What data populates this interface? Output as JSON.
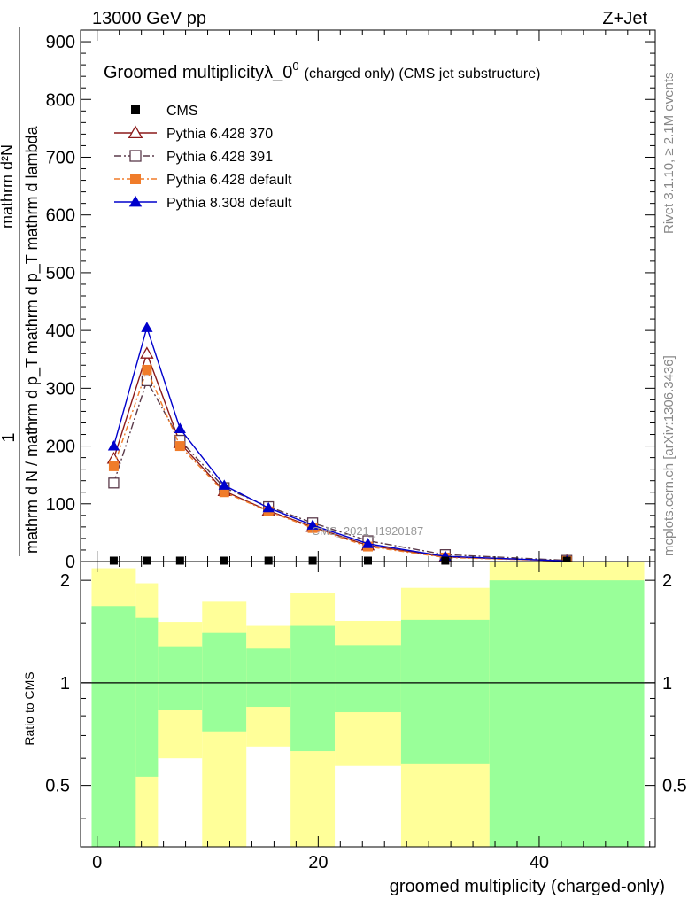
{
  "header": {
    "left": "13000 GeV pp",
    "right": "Z+Jet"
  },
  "side_labels": {
    "rivet": "Rivet 3.1.10, ≥ 2.1M events",
    "mcplots": "mcplots.cern.ch [arXiv:1306.3436]"
  },
  "chart_data": [
    {
      "type": "line",
      "title": "Groomed multiplicityλ_0",
      "title_sup": "0",
      "title_suffix": "(charged only) (CMS jet substructure)",
      "watermark": "CMS_2021_I1920187",
      "ylabel_top": "1",
      "ylabel_mid": "mathrm d N / mathrm d p_T mathrm d p_T mathrm d lambda",
      "ylabel_num": "mathrm d²N",
      "ylim": [
        0,
        920
      ],
      "yticks": [
        0,
        100,
        200,
        300,
        400,
        500,
        600,
        700,
        800,
        900
      ],
      "xlim": [
        -1.5,
        50.5
      ],
      "x": [
        1.5,
        4.5,
        7.5,
        11.5,
        15.5,
        19.5,
        24.5,
        31.5,
        42.5
      ],
      "series": [
        {
          "name": "CMS",
          "color": "#000000",
          "marker": "square-filled",
          "values": [
            0,
            0,
            0,
            0,
            0,
            0,
            0,
            0,
            0
          ]
        },
        {
          "name": "Pythia 6.428 370",
          "color": "#8b1a1a",
          "marker": "triangle-open",
          "dash": "",
          "values": [
            178,
            360,
            205,
            122,
            88,
            60,
            28,
            8,
            1
          ]
        },
        {
          "name": "Pythia 6.428 391",
          "color": "#5a3a4a",
          "marker": "square-open",
          "dash": "8 3 2 3",
          "values": [
            136,
            313,
            210,
            128,
            95,
            67,
            36,
            12,
            2
          ]
        },
        {
          "name": "Pythia 6.428 default",
          "color": "#f07c2a",
          "marker": "square-filled",
          "dash": "6 3 2 3",
          "values": [
            165,
            332,
            200,
            120,
            87,
            58,
            26,
            7,
            1
          ]
        },
        {
          "name": "Pythia 8.308 default",
          "color": "#0000cc",
          "marker": "triangle-filled",
          "dash": "",
          "values": [
            200,
            405,
            230,
            132,
            93,
            63,
            31,
            9,
            1
          ]
        }
      ]
    },
    {
      "type": "area",
      "ylabel": "Ratio to CMS",
      "xlabel": "groomed multiplicity (charged-only)",
      "xlim": [
        -1.5,
        50.5
      ],
      "xticks": [
        0,
        20,
        40
      ],
      "ylim": [
        0.33,
        2.27
      ],
      "yticks": [
        0.5,
        1,
        2
      ],
      "bands": [
        {
          "x0": -0.5,
          "x1": 3.5,
          "green": [
            0.33,
            1.68
          ],
          "yellow": [
            0.33,
            2.17
          ]
        },
        {
          "x0": 3.5,
          "x1": 5.5,
          "green": [
            0.53,
            1.55
          ],
          "yellow": [
            0.33,
            1.96
          ]
        },
        {
          "x0": 5.5,
          "x1": 9.5,
          "green": [
            0.83,
            1.28
          ],
          "yellow": [
            0.6,
            1.51
          ]
        },
        {
          "x0": 9.5,
          "x1": 13.5,
          "green": [
            0.72,
            1.4
          ],
          "yellow": [
            0.33,
            1.73
          ]
        },
        {
          "x0": 13.5,
          "x1": 17.5,
          "green": [
            0.85,
            1.26
          ],
          "yellow": [
            0.65,
            1.47
          ]
        },
        {
          "x0": 17.5,
          "x1": 21.5,
          "green": [
            0.63,
            1.47
          ],
          "yellow": [
            0.33,
            1.84
          ]
        },
        {
          "x0": 21.5,
          "x1": 27.5,
          "green": [
            0.82,
            1.29
          ],
          "yellow": [
            0.57,
            1.52
          ]
        },
        {
          "x0": 27.5,
          "x1": 35.5,
          "green": [
            0.58,
            1.53
          ],
          "yellow": [
            0.33,
            1.9
          ]
        },
        {
          "x0": 35.5,
          "x1": 49.5,
          "green": [
            0.33,
            2.0
          ],
          "yellow": [
            0.33,
            2.27
          ]
        }
      ],
      "colors": {
        "green": "#99ff99",
        "yellow": "#ffff99"
      }
    }
  ]
}
